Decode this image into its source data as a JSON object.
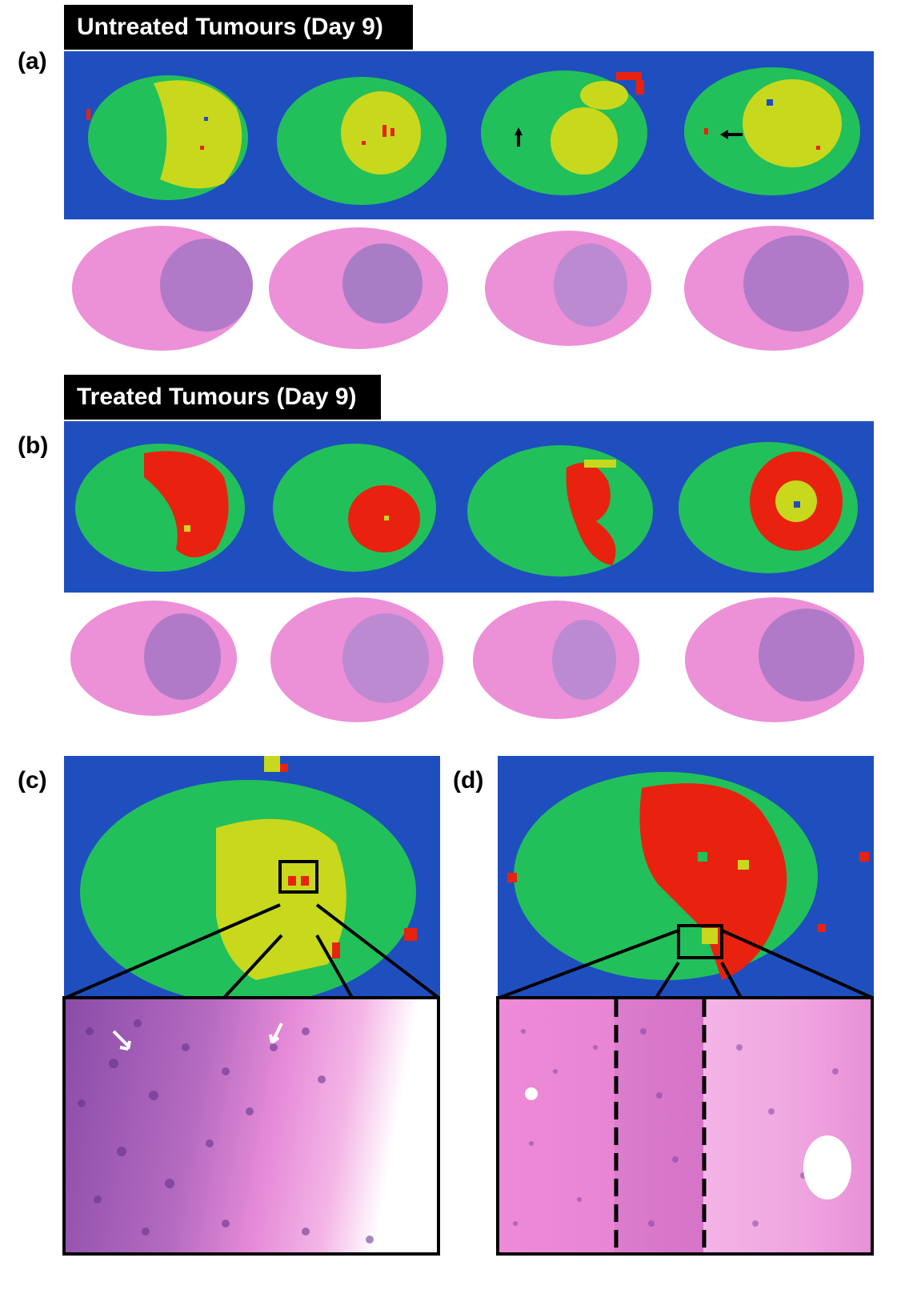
{
  "panels": {
    "a": {
      "label": "(a)",
      "title": "Untreated Tumours (Day 9)"
    },
    "b": {
      "label": "(b)",
      "title": "Treated Tumours (Day 9)"
    },
    "c": {
      "label": "(c)"
    },
    "d": {
      "label": "(d)"
    }
  },
  "colors": {
    "background_class": "#1f4fbf",
    "healthy_class": "#22c05a",
    "tumour_class": "#c8d81c",
    "necrotic_class": "#e8220f",
    "he_tissue": "#e98ad6",
    "he_tumour": "#b07ac8"
  }
}
